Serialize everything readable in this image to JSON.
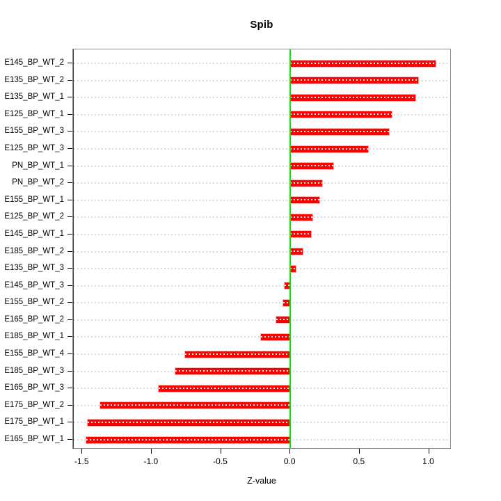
{
  "chart_data": {
    "type": "bar",
    "orientation": "horizontal",
    "title": "Spib",
    "xlabel": "Z-value",
    "ylabel": "",
    "legend": "none",
    "grid": "dotted horizontal guide per category",
    "categories": [
      "E145_BP_WT_2",
      "E135_BP_WT_2",
      "E135_BP_WT_1",
      "E125_BP_WT_1",
      "E155_BP_WT_3",
      "E125_BP_WT_3",
      "PN_BP_WT_1",
      "PN_BP_WT_2",
      "E155_BP_WT_1",
      "E125_BP_WT_2",
      "E145_BP_WT_1",
      "E185_BP_WT_2",
      "E135_BP_WT_3",
      "E145_BP_WT_3",
      "E155_BP_WT_2",
      "E165_BP_WT_2",
      "E185_BP_WT_1",
      "E155_BP_WT_4",
      "E185_BP_WT_3",
      "E165_BP_WT_3",
      "E175_BP_WT_2",
      "E175_BP_WT_1",
      "E165_BP_WT_1"
    ],
    "values": [
      1.05,
      0.92,
      0.9,
      0.73,
      0.71,
      0.56,
      0.31,
      0.23,
      0.21,
      0.16,
      0.15,
      0.09,
      0.04,
      -0.04,
      -0.05,
      -0.1,
      -0.21,
      -0.76,
      -0.83,
      -0.95,
      -1.37,
      -1.46,
      -1.47
    ],
    "xlim": [
      -1.566,
      1.153
    ],
    "x_ticks": [
      {
        "value": -1.5,
        "label": "-1.5"
      },
      {
        "value": -1.0,
        "label": "-1.0"
      },
      {
        "value": -0.5,
        "label": "-0.5"
      },
      {
        "value": 0.0,
        "label": "0.0"
      },
      {
        "value": 0.5,
        "label": "0.5"
      },
      {
        "value": 1.0,
        "label": "1.0"
      }
    ],
    "zero_line_value": 0.0,
    "colors": {
      "bar": "#FF0000",
      "bar_dash_overlay": "#FFFFFF",
      "zero_line": "#00EE00",
      "plot_border": "#8C8C8C",
      "grid_dots": "#DADADA",
      "text": "#000000"
    }
  }
}
